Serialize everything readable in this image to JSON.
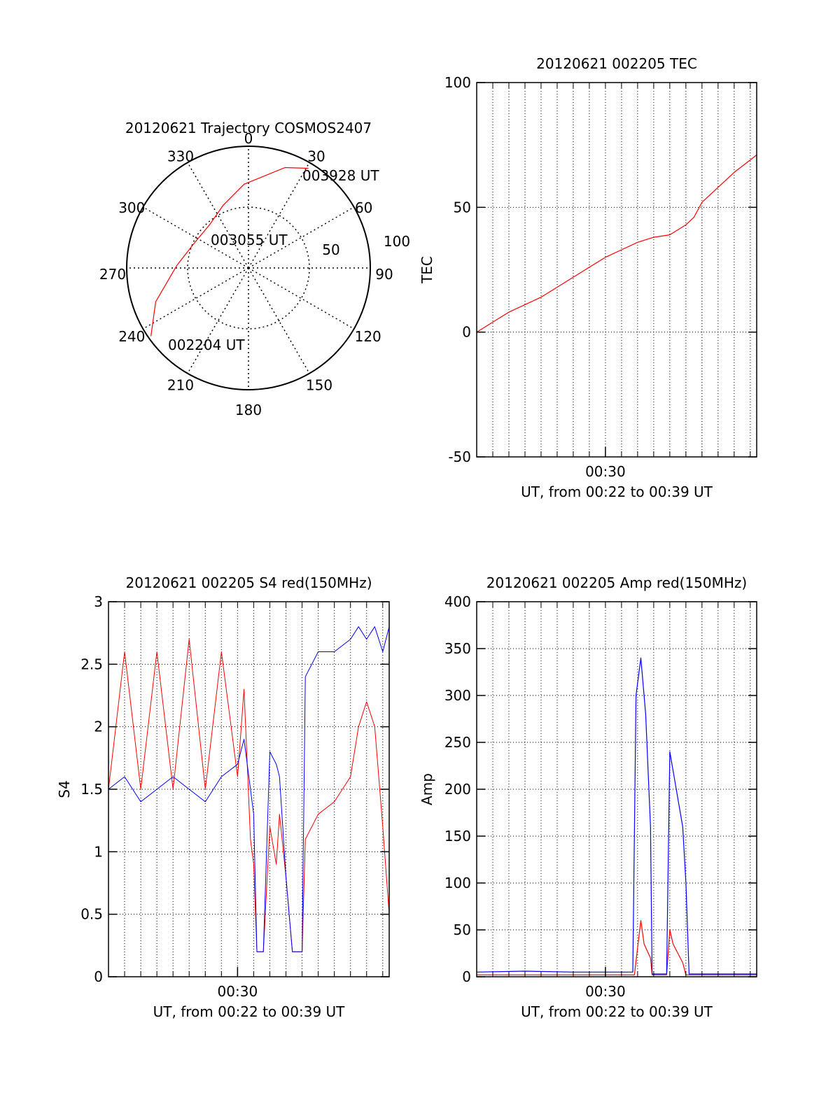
{
  "colors": {
    "primary": "#ff0000",
    "secondary": "#0000ff",
    "axis": "#000000",
    "grid": "#000000"
  },
  "chart_data": [
    {
      "id": "trajectory",
      "type": "polar",
      "title": "20120621 Trajectory COSMOS2407",
      "azimuth_labels": [
        "0",
        "30",
        "60",
        "90",
        "120",
        "150",
        "180",
        "210",
        "240",
        "270",
        "300",
        "330"
      ],
      "zenith_labels": [
        "50",
        "100"
      ],
      "track_points": [
        {
          "az": 235,
          "zen": 88
        },
        {
          "az": 250,
          "zen": 73
        },
        {
          "az": 272,
          "zen": 53
        },
        {
          "az": 295,
          "zen": 44
        },
        {
          "az": 318,
          "zen": 43
        },
        {
          "az": 338,
          "zen": 50
        },
        {
          "az": 357,
          "zen": 62
        },
        {
          "az": 20,
          "zen": 79
        },
        {
          "az": 31,
          "zen": 86
        }
      ],
      "annotations": [
        {
          "text": "003928 UT",
          "az": 33,
          "zen": 86
        },
        {
          "text": "003055 UT",
          "az": 287,
          "zen": 34
        },
        {
          "text": "002204 UT",
          "az": 231,
          "zen": 80
        }
      ]
    },
    {
      "id": "tec",
      "type": "line",
      "title": "20120621 002205 TEC",
      "xlabel": "UT, from 00:22 to 00:39 UT",
      "ylabel": "TEC",
      "xlim": [
        22.0,
        39.4
      ],
      "ylim": [
        -50,
        100
      ],
      "yticks": [
        -50,
        0,
        50,
        100
      ],
      "xticks": [
        {
          "value": 30,
          "label": "00:30"
        }
      ],
      "series": [
        {
          "color": "#ff0000",
          "x": [
            22.0,
            23.0,
            24.0,
            25.0,
            26.0,
            27.0,
            28.0,
            29.0,
            30.0,
            31.0,
            32.0,
            33.0,
            34.0,
            35.0,
            35.5,
            36.0,
            37.0,
            38.0,
            39.0,
            39.4
          ],
          "y": [
            0,
            4,
            8,
            11,
            14,
            18,
            22,
            26,
            30,
            33,
            36,
            38,
            39,
            43,
            46,
            52,
            58,
            64,
            69,
            71
          ]
        }
      ]
    },
    {
      "id": "s4",
      "type": "line",
      "title": "20120621 002205 S4 red(150MHz)",
      "xlabel": "UT, from 00:22 to 00:39 UT",
      "ylabel": "S4",
      "xlim": [
        22.0,
        39.4
      ],
      "ylim": [
        0,
        3
      ],
      "yticks": [
        0,
        0.5,
        1,
        1.5,
        2,
        2.5,
        3
      ],
      "ytick_labels": [
        "0",
        "0.5",
        "1",
        "1.5",
        "2",
        "2.5",
        "3"
      ],
      "xticks": [
        {
          "value": 30,
          "label": "00:30"
        }
      ],
      "series": [
        {
          "color": "#ff0000",
          "x": [
            22.0,
            23.0,
            24.0,
            25.0,
            26.0,
            27.0,
            28.0,
            29.0,
            30.0,
            30.4,
            30.8,
            31.0,
            31.2,
            31.6,
            32.0,
            32.4,
            32.6,
            33.0,
            33.4,
            33.6,
            34.0,
            34.2,
            35.0,
            36.0,
            37.0,
            37.5,
            38.0,
            38.5,
            39.0,
            39.4
          ],
          "y": [
            1.5,
            2.6,
            1.5,
            2.6,
            1.5,
            2.7,
            1.5,
            2.6,
            1.6,
            2.3,
            1.1,
            0.9,
            0.2,
            0.2,
            1.2,
            0.9,
            1.3,
            0.8,
            0.2,
            0.2,
            0.2,
            1.1,
            1.3,
            1.4,
            1.6,
            2.0,
            2.2,
            2.0,
            1.2,
            0.5
          ]
        },
        {
          "color": "#0000ff",
          "x": [
            22.0,
            23.0,
            24.0,
            25.0,
            26.0,
            27.0,
            28.0,
            29.0,
            30.0,
            30.4,
            30.8,
            31.0,
            31.2,
            31.6,
            32.0,
            32.4,
            32.6,
            33.0,
            33.4,
            33.6,
            34.0,
            34.2,
            35.0,
            36.0,
            37.0,
            37.5,
            38.0,
            38.5,
            39.0,
            39.4
          ],
          "y": [
            1.5,
            1.6,
            1.4,
            1.5,
            1.6,
            1.5,
            1.4,
            1.6,
            1.7,
            1.9,
            1.5,
            1.3,
            0.2,
            0.2,
            1.8,
            1.7,
            1.6,
            0.8,
            0.2,
            0.2,
            0.2,
            2.4,
            2.6,
            2.6,
            2.7,
            2.8,
            2.7,
            2.8,
            2.6,
            2.8
          ]
        }
      ]
    },
    {
      "id": "amp",
      "type": "line",
      "title": "20120621 002205 Amp red(150MHz)",
      "xlabel": "UT, from 00:22 to 00:39 UT",
      "ylabel": "Amp",
      "xlim": [
        22.0,
        39.4
      ],
      "ylim": [
        0,
        400
      ],
      "yticks": [
        0,
        50,
        100,
        150,
        200,
        250,
        300,
        350,
        400
      ],
      "xticks": [
        {
          "value": 30,
          "label": "00:30"
        }
      ],
      "series": [
        {
          "color": "#ff0000",
          "x": [
            22.0,
            31.8,
            32.2,
            32.4,
            32.8,
            32.9,
            33.8,
            34.0,
            34.2,
            34.8,
            35.0,
            39.4
          ],
          "y": [
            2,
            2,
            60,
            35,
            20,
            2,
            2,
            50,
            35,
            15,
            2,
            2
          ]
        },
        {
          "color": "#0000ff",
          "x": [
            22.0,
            25.0,
            28.0,
            31.0,
            31.7,
            31.9,
            32.2,
            32.5,
            32.8,
            32.9,
            33.8,
            34.0,
            34.2,
            34.5,
            34.8,
            35.0,
            35.2,
            39.4
          ],
          "y": [
            5,
            6,
            5,
            5,
            5,
            300,
            340,
            280,
            160,
            3,
            3,
            240,
            220,
            190,
            160,
            100,
            3,
            3
          ]
        }
      ]
    }
  ]
}
